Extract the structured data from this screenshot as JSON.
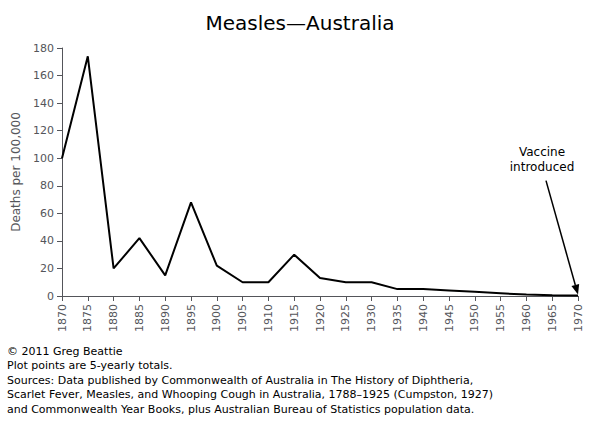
{
  "chart_data": {
    "type": "line",
    "title": "Measles—Australia",
    "y_label": "Deaths per 100,000",
    "x": [
      1870,
      1875,
      1880,
      1885,
      1890,
      1895,
      1900,
      1905,
      1910,
      1915,
      1920,
      1925,
      1930,
      1935,
      1940,
      1945,
      1950,
      1955,
      1960,
      1965,
      1970
    ],
    "values": [
      100,
      174,
      20,
      42,
      15,
      68,
      22,
      10,
      10,
      30,
      13,
      10,
      10,
      5,
      5,
      4,
      3,
      2,
      1,
      0.5,
      0.3
    ],
    "color": "#000000",
    "xlim": [
      1870,
      1970
    ],
    "xticks": [
      1870,
      1875,
      1880,
      1885,
      1890,
      1895,
      1900,
      1905,
      1910,
      1915,
      1920,
      1925,
      1930,
      1935,
      1940,
      1945,
      1950,
      1955,
      1960,
      1965,
      1970
    ],
    "ylim": [
      0,
      180
    ],
    "yticks": [
      0,
      20,
      40,
      60,
      80,
      100,
      120,
      140,
      160,
      180
    ],
    "grid": false,
    "annotations": [
      {
        "text": "Vaccine\nintroduced",
        "x": 1970,
        "y": 1
      }
    ],
    "footer": [
      "© 2011 Greg Beattie",
      "Plot points are 5-yearly totals.",
      "Sources: Data published by Commonwealth of Australia in The History of Diphtheria,",
      "Scarlet Fever, Measles, and Whooping Cough in Australia, 1788–1925 (Cumpston, 1927)",
      "and Commonwealth Year Books, plus Australian Bureau of Statistics population data."
    ]
  }
}
